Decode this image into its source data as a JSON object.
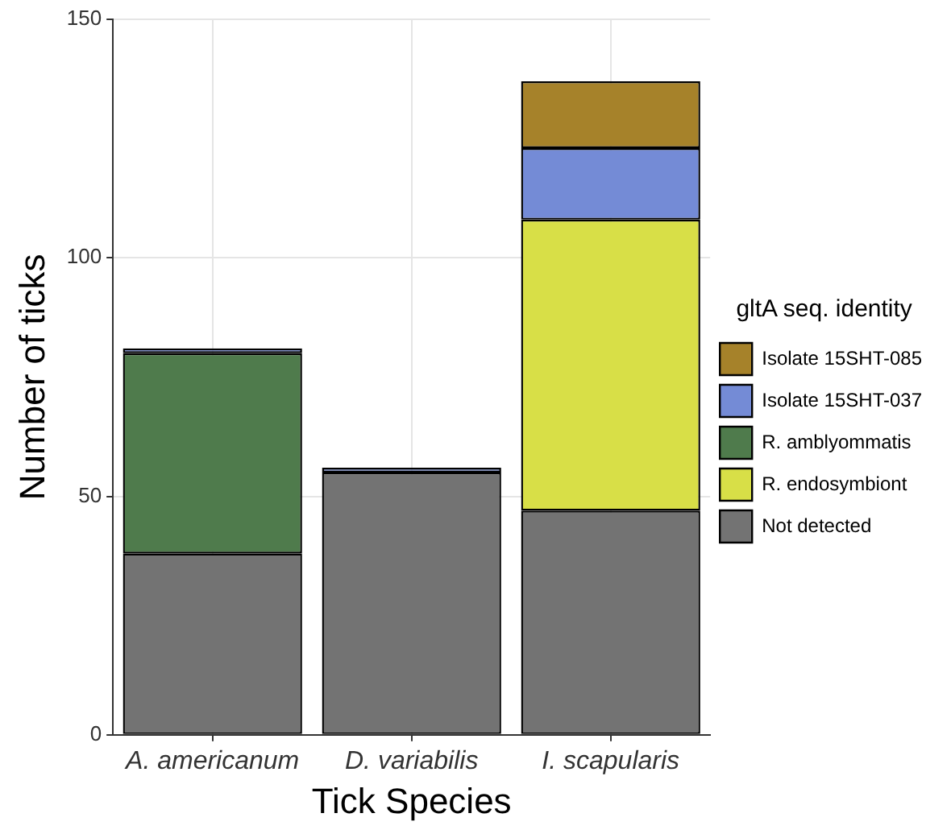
{
  "chart_data": {
    "type": "bar",
    "stacked": true,
    "xlabel": "Tick Species",
    "ylabel": "Number of ticks",
    "legend_title": "gltA seq. identity",
    "legend": "right",
    "grid": true,
    "categories": [
      "A. americanum",
      "D. variabilis",
      "I. scapularis"
    ],
    "ylim": [
      0,
      150
    ],
    "yticks": [
      0,
      50,
      100,
      150
    ],
    "series": [
      {
        "name": "Not detected",
        "color": "#737373",
        "values": [
          38,
          55,
          47
        ]
      },
      {
        "name": "R. endosymbiont",
        "color": "#d8df47",
        "values": [
          0,
          0,
          61
        ]
      },
      {
        "name": "R. amblyommatis",
        "color": "#4f7b4c",
        "values": [
          42,
          0,
          0
        ]
      },
      {
        "name": "Isolate 15SHT-037",
        "color": "#748bd6",
        "values": [
          1,
          1,
          15
        ]
      },
      {
        "name": "Isolate 15SHT-085",
        "color": "#a6822a",
        "values": [
          0,
          0,
          14
        ]
      }
    ]
  }
}
